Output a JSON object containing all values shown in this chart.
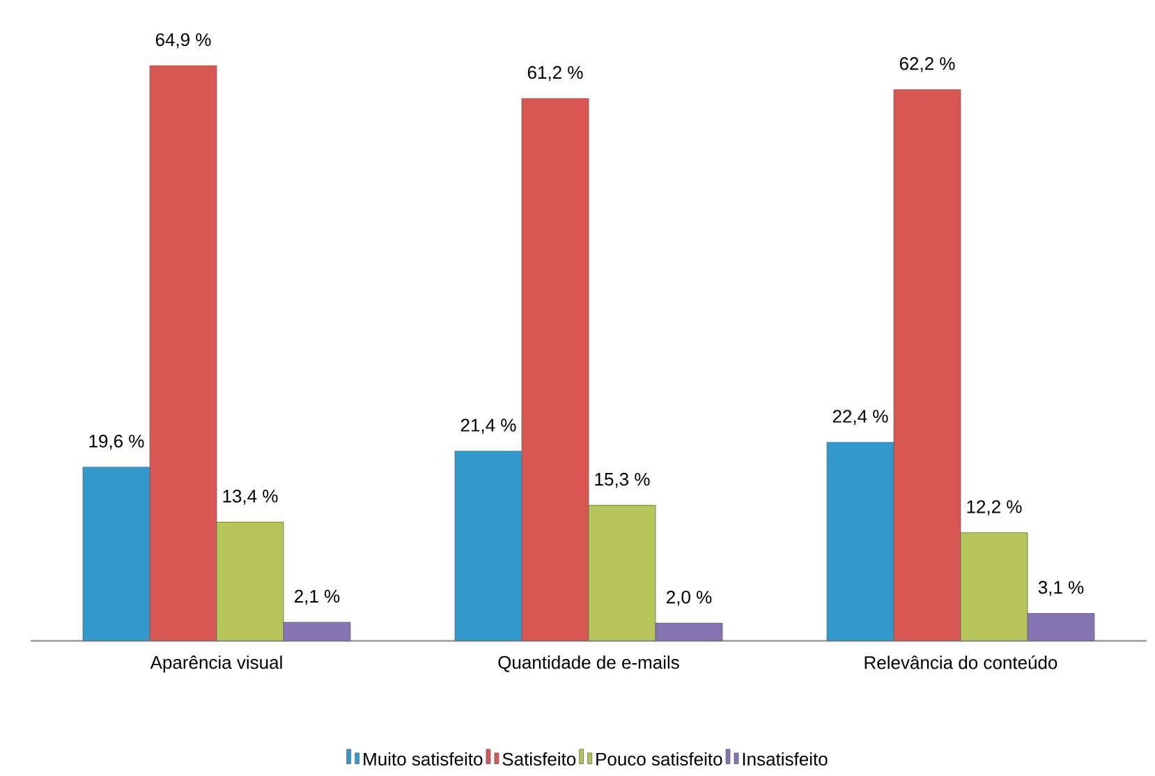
{
  "chart_data": {
    "type": "bar",
    "categories": [
      "Aparência visual",
      "Quantidade de e-mails",
      "Relevância do conteúdo"
    ],
    "series": [
      {
        "name": "Muito satisfeito",
        "color": "#3399cc",
        "values": [
          19.6,
          21.4,
          22.4
        ],
        "value_labels": [
          "19,6 %",
          "21,4 %",
          "22,4 %"
        ]
      },
      {
        "name": "Satisfeito",
        "color": "#d95752",
        "values": [
          64.9,
          61.2,
          62.2
        ],
        "value_labels": [
          "64,9 %",
          "61,2 %",
          "62,2 %"
        ]
      },
      {
        "name": "Pouco satisfeito",
        "color": "#b5c55a",
        "values": [
          13.4,
          15.3,
          12.2
        ],
        "value_labels": [
          "13,4 %",
          "15,3 %",
          "12,2 %"
        ]
      },
      {
        "name": "Insatisfeito",
        "color": "#8673b2",
        "values": [
          2.1,
          2.0,
          3.1
        ],
        "value_labels": [
          "2,1 %",
          "2,0 %",
          "3,1 %"
        ]
      }
    ],
    "legend": "bottom"
  }
}
